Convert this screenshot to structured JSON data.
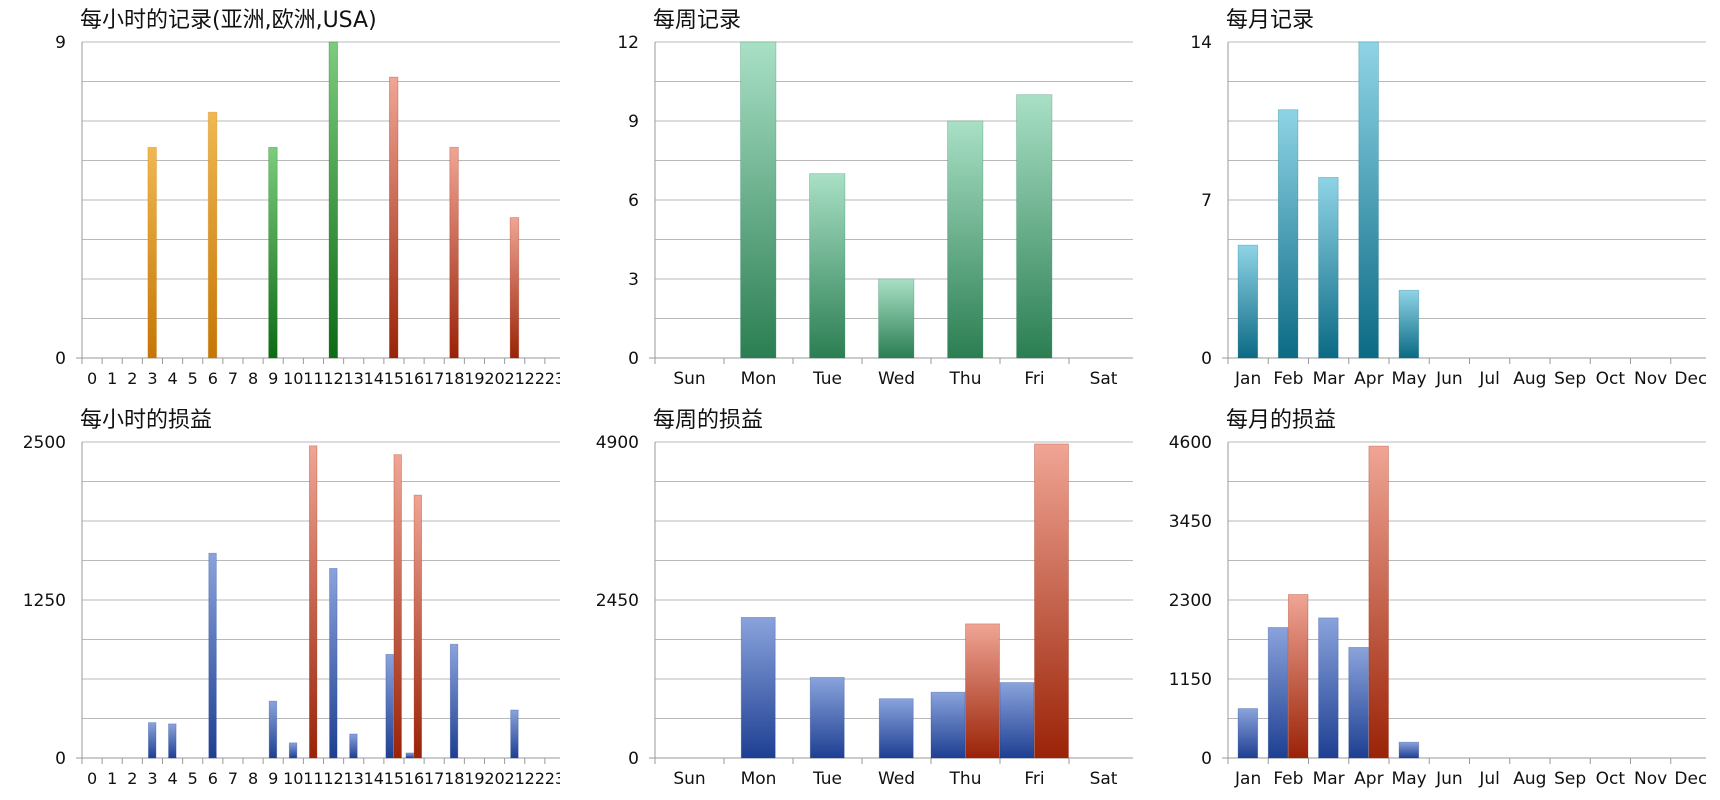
{
  "colors": {
    "grid": "#b9b9b9",
    "axis": "#9a9a9a",
    "text": "#111111",
    "series_orange": [
      "#f0b84f",
      "#c57605"
    ],
    "series_green_dark": [
      "#7ccc7c",
      "#0d6b14"
    ],
    "series_red": [
      "#f0a595",
      "#9a2307"
    ],
    "series_teal_green": [
      "#a9e0c6",
      "#2b7e52"
    ],
    "series_teal_blue": [
      "#8fd4e6",
      "#0b6a84"
    ],
    "series_blue": [
      "#8aa3dc",
      "#1e3f92"
    ]
  },
  "charts": [
    {
      "id": "hourly-records",
      "title": "每小时的记录(亚洲,欧洲,USA)",
      "chart_data": {
        "type": "bar",
        "title": "每小时的记录(亚洲,欧洲,USA)",
        "categories": [
          "0",
          "1",
          "2",
          "3",
          "4",
          "5",
          "6",
          "7",
          "8",
          "9",
          "10",
          "11",
          "12",
          "13",
          "14",
          "15",
          "16",
          "17",
          "18",
          "19",
          "20",
          "21",
          "22",
          "23"
        ],
        "ylim": [
          0,
          9
        ],
        "yticks": [
          "0",
          "9"
        ],
        "grid": true,
        "grid_lines": 8,
        "bar_width_ratio": 0.45,
        "series": [
          {
            "colors": "series_orange",
            "values": [
              0,
              0,
              0,
              6,
              0,
              0,
              7,
              0,
              0,
              0,
              0,
              0,
              0,
              0,
              0,
              0,
              0,
              0,
              0,
              0,
              0,
              0,
              0,
              0
            ]
          },
          {
            "colors": "series_green_dark",
            "values": [
              0,
              0,
              0,
              0,
              0,
              0,
              0,
              0,
              0,
              6,
              0,
              0,
              9,
              0,
              0,
              0,
              0,
              0,
              0,
              0,
              0,
              0,
              0,
              0
            ]
          },
          {
            "colors": "series_red",
            "values": [
              0,
              0,
              0,
              0,
              0,
              0,
              0,
              0,
              0,
              0,
              0,
              0,
              0,
              0,
              0,
              8,
              0,
              0,
              6,
              0,
              0,
              4,
              0,
              0
            ]
          }
        ]
      }
    },
    {
      "id": "weekly-records",
      "title": "每周记录",
      "chart_data": {
        "type": "bar",
        "title": "每周记录",
        "categories": [
          "Sun",
          "Mon",
          "Tue",
          "Wed",
          "Thu",
          "Fri",
          "Sat"
        ],
        "ylim": [
          0,
          12
        ],
        "yticks": [
          "0",
          "3",
          "6",
          "9",
          "12"
        ],
        "grid": true,
        "grid_lines": 8,
        "bar_width_ratio": 0.52,
        "series": [
          {
            "colors": "series_teal_green",
            "values": [
              0,
              12,
              7,
              3,
              9,
              10,
              0
            ]
          }
        ]
      }
    },
    {
      "id": "monthly-records",
      "title": "每月记录",
      "chart_data": {
        "type": "bar",
        "title": "每月记录",
        "categories": [
          "Jan",
          "Feb",
          "Mar",
          "Apr",
          "May",
          "Jun",
          "Jul",
          "Aug",
          "Sep",
          "Oct",
          "Nov",
          "Dec"
        ],
        "ylim": [
          0,
          14
        ],
        "yticks": [
          "0",
          "7",
          "14"
        ],
        "grid": true,
        "grid_lines": 8,
        "bar_width_ratio": 0.5,
        "series": [
          {
            "colors": "series_teal_blue",
            "values": [
              5,
              11,
              8,
              14,
              3,
              0,
              0,
              0,
              0,
              0,
              0,
              0
            ]
          }
        ]
      }
    },
    {
      "id": "hourly-profit-loss",
      "title": "每小时的损益",
      "chart_data": {
        "type": "bar",
        "title": "每小时的损益",
        "categories": [
          "0",
          "1",
          "2",
          "3",
          "4",
          "5",
          "6",
          "7",
          "8",
          "9",
          "10",
          "11",
          "12",
          "13",
          "14",
          "15",
          "16",
          "17",
          "18",
          "19",
          "20",
          "21",
          "22",
          "23"
        ],
        "ylim": [
          0,
          2500
        ],
        "yticks": [
          "0",
          "1250",
          "2500"
        ],
        "grid": true,
        "grid_lines": 8,
        "bar_width_ratio": 0.4,
        "series": [
          {
            "colors": "series_blue",
            "values": [
              0,
              0,
              0,
              280,
              270,
              0,
              1620,
              0,
              0,
              450,
              120,
              0,
              1500,
              190,
              0,
              820,
              40,
              0,
              900,
              0,
              0,
              380,
              0,
              0
            ]
          },
          {
            "colors": "series_red",
            "values": [
              0,
              0,
              0,
              0,
              0,
              0,
              0,
              0,
              0,
              0,
              0,
              2470,
              0,
              0,
              0,
              2400,
              2080,
              0,
              0,
              0,
              0,
              0,
              0,
              0
            ]
          }
        ]
      }
    },
    {
      "id": "weekly-profit-loss",
      "title": "每周的损益",
      "chart_data": {
        "type": "bar",
        "title": "每周的损益",
        "categories": [
          "Sun",
          "Mon",
          "Tue",
          "Wed",
          "Thu",
          "Fri",
          "Sat"
        ],
        "ylim": [
          0,
          4900
        ],
        "yticks": [
          "0",
          "2450",
          "4900"
        ],
        "grid": true,
        "grid_lines": 8,
        "bar_width_ratio": 0.5,
        "series": [
          {
            "colors": "series_blue",
            "values": [
              0,
              2180,
              1250,
              920,
              1020,
              1170,
              0
            ]
          },
          {
            "colors": "series_red",
            "values": [
              0,
              0,
              0,
              0,
              2080,
              4870,
              0
            ]
          }
        ]
      }
    },
    {
      "id": "monthly-profit-loss",
      "title": "每月的损益",
      "chart_data": {
        "type": "bar",
        "title": "每月的损益",
        "categories": [
          "Jan",
          "Feb",
          "Mar",
          "Apr",
          "May",
          "Jun",
          "Jul",
          "Aug",
          "Sep",
          "Oct",
          "Nov",
          "Dec"
        ],
        "ylim": [
          0,
          4600
        ],
        "yticks": [
          "0",
          "1150",
          "2300",
          "3450",
          "4600"
        ],
        "grid": true,
        "grid_lines": 8,
        "bar_width_ratio": 0.5,
        "series": [
          {
            "colors": "series_blue",
            "values": [
              720,
              1900,
              2040,
              1610,
              230,
              0,
              0,
              0,
              0,
              0,
              0,
              0
            ]
          },
          {
            "colors": "series_red",
            "values": [
              0,
              2380,
              0,
              4540,
              0,
              0,
              0,
              0,
              0,
              0,
              0,
              0
            ]
          }
        ]
      }
    }
  ]
}
